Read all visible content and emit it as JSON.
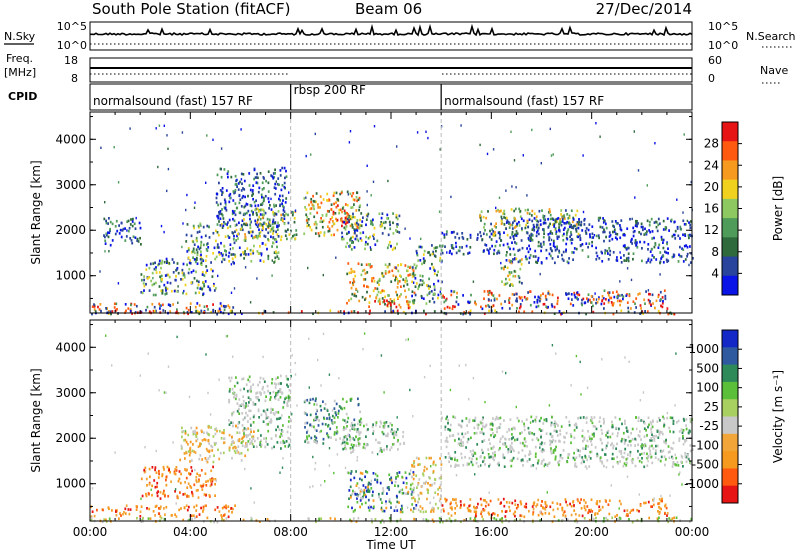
{
  "header": {
    "station": "South Pole Station (fitACF)",
    "beam": "Beam 06",
    "date": "27/Dec/2014"
  },
  "top_panels": {
    "nsky_label": "N.Sky",
    "nsky_ticks": [
      "10^5",
      "10^0"
    ],
    "nsearch_label": "N.Search",
    "nsearch_ticks": [
      "10^5",
      "10^0"
    ],
    "freq_label": "Freq.",
    "freq_unit": "[MHz]",
    "freq_ticks": [
      "18",
      "8"
    ],
    "nave_label": "Nave",
    "nave_ticks": [
      "60",
      "0"
    ],
    "cpid_label": "CPID",
    "cpid_segments": [
      {
        "label": "normalsound (fast) 157 RF",
        "start_h": 0,
        "end_h": 8
      },
      {
        "label": "rbsp 200 RF",
        "start_h": 8,
        "end_h": 14
      },
      {
        "label": "normalsound (fast) 157 RF",
        "start_h": 14,
        "end_h": 24
      }
    ]
  },
  "chart_data": [
    {
      "type": "heatmap",
      "title": "",
      "xlabel": "Time UT",
      "ylabel": "Slant Range [km]",
      "xlim": [
        0,
        24
      ],
      "ylim": [
        180,
        4600
      ],
      "x_ticks": [
        "00:00",
        "04:00",
        "08:00",
        "12:00",
        "16:00",
        "20:00",
        "00:00"
      ],
      "y_ticks": [
        "1000",
        "2000",
        "3000",
        "4000"
      ],
      "colorbar": {
        "label": "Power [dB]",
        "ticks": [
          "28",
          "24",
          "20",
          "16",
          "12",
          "8",
          "4"
        ],
        "range": [
          0,
          30
        ],
        "colors": [
          "#0a14e6",
          "#28449c",
          "#2f6a3c",
          "#4f9c5a",
          "#8ec860",
          "#f0d21e",
          "#f59a1e",
          "#ff5a10",
          "#e61414"
        ]
      },
      "regions": [
        {
          "t0": 0.0,
          "t1": 5.8,
          "r0": 190,
          "r1": 420,
          "level": "mixed-low"
        },
        {
          "t0": 0.0,
          "t1": 24.0,
          "r0": 180,
          "r1": 260,
          "level": "ground"
        },
        {
          "t0": 0.5,
          "t1": 2.0,
          "r0": 1700,
          "r1": 2300,
          "level": "low"
        },
        {
          "t0": 2.0,
          "t1": 5.0,
          "r0": 600,
          "r1": 1400,
          "level": "low-mid"
        },
        {
          "t0": 3.8,
          "t1": 7.5,
          "r0": 1300,
          "r1": 2200,
          "level": "low-mid"
        },
        {
          "t0": 5.0,
          "t1": 7.8,
          "r0": 2100,
          "r1": 3400,
          "level": "low"
        },
        {
          "t0": 6.0,
          "t1": 8.2,
          "r0": 1800,
          "r1": 2500,
          "level": "mid"
        },
        {
          "t0": 8.5,
          "t1": 10.8,
          "r0": 1900,
          "r1": 2900,
          "level": "mid-high"
        },
        {
          "t0": 9.5,
          "t1": 10.3,
          "r0": 2100,
          "r1": 2600,
          "level": "high"
        },
        {
          "t0": 10.0,
          "t1": 12.3,
          "r0": 1600,
          "r1": 2400,
          "level": "low-mid"
        },
        {
          "t0": 10.2,
          "t1": 13.0,
          "r0": 400,
          "r1": 1300,
          "level": "mid-high"
        },
        {
          "t0": 11.0,
          "t1": 12.8,
          "r0": 300,
          "r1": 500,
          "level": "high"
        },
        {
          "t0": 12.8,
          "t1": 14.0,
          "r0": 400,
          "r1": 1700,
          "level": "low-mid"
        },
        {
          "t0": 14.0,
          "t1": 16.5,
          "r0": 1500,
          "r1": 2000,
          "level": "low"
        },
        {
          "t0": 15.5,
          "t1": 19.5,
          "r0": 1900,
          "r1": 2500,
          "level": "mid"
        },
        {
          "t0": 16.5,
          "t1": 24.0,
          "r0": 1300,
          "r1": 2300,
          "level": "low"
        },
        {
          "t0": 14.0,
          "t1": 23.0,
          "r0": 300,
          "r1": 700,
          "level": "mixed-low"
        },
        {
          "t0": 16.3,
          "t1": 17.2,
          "r0": 800,
          "r1": 1400,
          "level": "mid"
        }
      ]
    },
    {
      "type": "heatmap",
      "title": "",
      "xlabel": "Time UT",
      "ylabel": "Slant Range [km]",
      "xlim": [
        0,
        24
      ],
      "ylim": [
        180,
        4600
      ],
      "x_ticks": [
        "00:00",
        "04:00",
        "08:00",
        "12:00",
        "16:00",
        "20:00",
        "00:00"
      ],
      "y_ticks": [
        "1000",
        "2000",
        "3000",
        "4000"
      ],
      "colorbar": {
        "label": "Velocity [m s^-1]",
        "ticks": [
          "1000",
          "500",
          "100",
          "25",
          "-25",
          "-100",
          "-500",
          "-1000"
        ],
        "range": [
          -1000,
          1000
        ],
        "colors": [
          "#e61414",
          "#ff5a10",
          "#f59a1e",
          "#f2a63a",
          "#c8c8c8",
          "#a8d060",
          "#5cbf3a",
          "#2f8a5a",
          "#2f5aa0",
          "#1428c8"
        ]
      },
      "regions": [
        {
          "t0": 0.0,
          "t1": 5.8,
          "r0": 300,
          "r1": 550,
          "level": "neg-mid"
        },
        {
          "t0": 0.0,
          "t1": 24.0,
          "r0": 180,
          "r1": 280,
          "level": "zero-green"
        },
        {
          "t0": 2.0,
          "t1": 5.0,
          "r0": 700,
          "r1": 1400,
          "level": "neg-mid"
        },
        {
          "t0": 3.5,
          "t1": 6.5,
          "r0": 1500,
          "r1": 2300,
          "level": "neg-low"
        },
        {
          "t0": 5.5,
          "t1": 8.0,
          "r0": 1800,
          "r1": 3400,
          "level": "zero"
        },
        {
          "t0": 8.5,
          "t1": 10.8,
          "r0": 1900,
          "r1": 2900,
          "level": "pos-mid"
        },
        {
          "t0": 10.0,
          "t1": 12.5,
          "r0": 1700,
          "r1": 2400,
          "level": "zero"
        },
        {
          "t0": 10.2,
          "t1": 13.0,
          "r0": 400,
          "r1": 1300,
          "level": "mixed"
        },
        {
          "t0": 12.8,
          "t1": 14.0,
          "r0": 400,
          "r1": 1600,
          "level": "neg-low"
        },
        {
          "t0": 14.0,
          "t1": 24.0,
          "r0": 1400,
          "r1": 2500,
          "level": "zero"
        },
        {
          "t0": 14.0,
          "t1": 23.0,
          "r0": 300,
          "r1": 700,
          "level": "neg-mid"
        }
      ]
    }
  ]
}
